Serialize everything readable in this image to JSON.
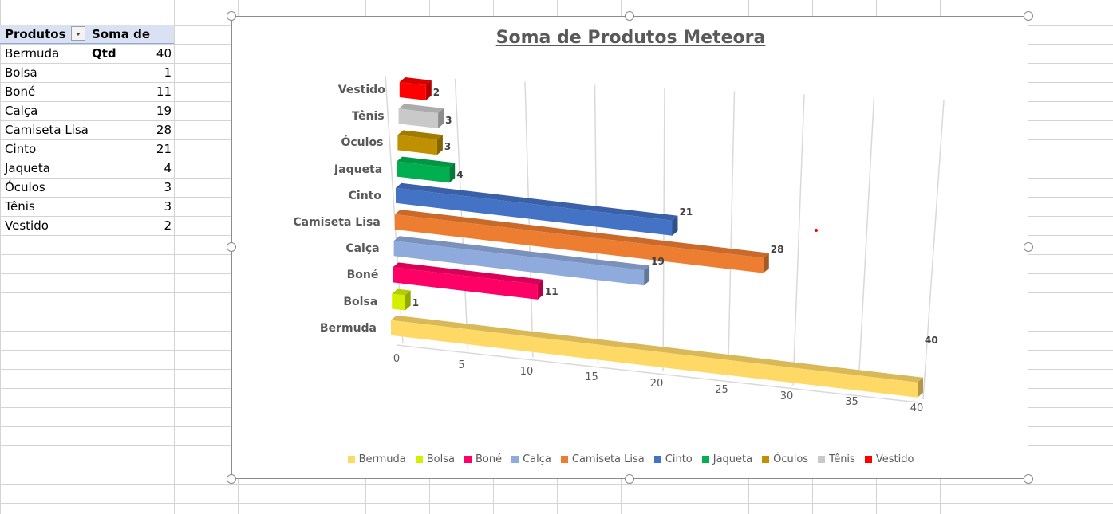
{
  "pivot": {
    "header_products": "Produtos",
    "header_sum": "Soma de Qtd",
    "rows": [
      {
        "produto": "Bermuda",
        "qtd": "40"
      },
      {
        "produto": "Bolsa",
        "qtd": "1"
      },
      {
        "produto": "Boné",
        "qtd": "11"
      },
      {
        "produto": "Calça",
        "qtd": "19"
      },
      {
        "produto": "Camiseta Lisa",
        "qtd": "28"
      },
      {
        "produto": "Cinto",
        "qtd": "21"
      },
      {
        "produto": "Jaqueta",
        "qtd": "4"
      },
      {
        "produto": "Óculos",
        "qtd": "3"
      },
      {
        "produto": "Tênis",
        "qtd": "3"
      },
      {
        "produto": "Vestido",
        "qtd": "2"
      }
    ]
  },
  "chart_data": {
    "type": "bar",
    "orientation": "horizontal-3d",
    "title": "Soma de Produtos Meteora",
    "xlabel": "",
    "ylabel": "",
    "categories": [
      "Bermuda",
      "Bolsa",
      "Boné",
      "Calça",
      "Camiseta Lisa",
      "Cinto",
      "Jaqueta",
      "Óculos",
      "Tênis",
      "Vestido"
    ],
    "values": [
      40,
      1,
      11,
      19,
      28,
      21,
      4,
      3,
      3,
      2
    ],
    "colors": [
      "#ffd966",
      "#d4f000",
      "#ff0066",
      "#8faadc",
      "#ed7d31",
      "#4472c4",
      "#00b050",
      "#bf9000",
      "#c9c9c9",
      "#ff0000"
    ],
    "xlim": [
      0,
      40
    ],
    "ticks": [
      "0",
      "5",
      "10",
      "15",
      "20",
      "25",
      "30",
      "35",
      "40"
    ],
    "grid": true,
    "legend_position": "bottom"
  }
}
